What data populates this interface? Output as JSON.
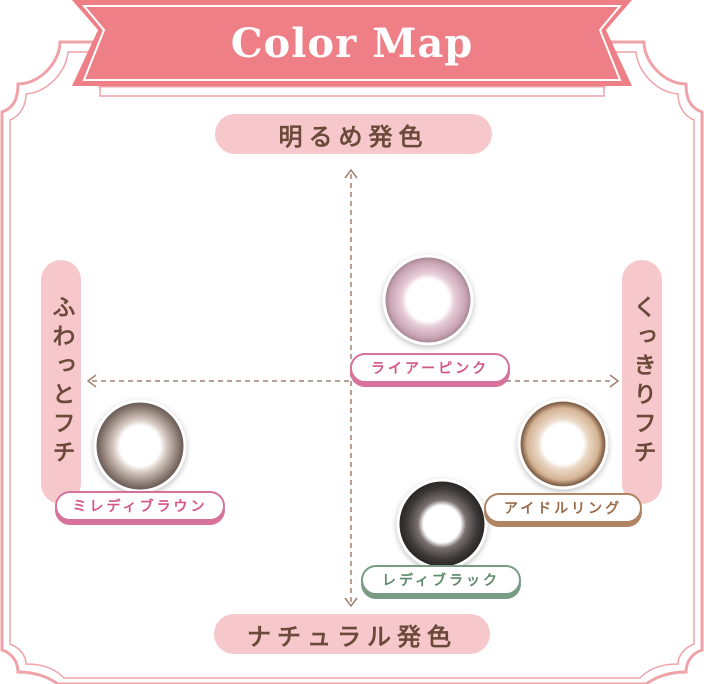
{
  "title": "Color Map",
  "axes": {
    "top": "明るめ発色",
    "bottom": "ナチュラル発色",
    "left": "ふわっとフチ",
    "right": "くっきりフチ"
  },
  "lenses": [
    {
      "label": "ライアーピンク",
      "color": "#c9a4b4"
    },
    {
      "label": "ミレディブラウン",
      "color": "#8e7e76"
    },
    {
      "label": "アイドルリング",
      "color": "#b08a6c"
    },
    {
      "label": "レディブラック",
      "color": "#3f3a3a"
    }
  ],
  "colors": {
    "ribbon": "#ef7f86",
    "frame": "#efa3a9",
    "pill": "#f6c8cc",
    "axis_text": "#6b4a3a",
    "arrow": "#a08070"
  }
}
